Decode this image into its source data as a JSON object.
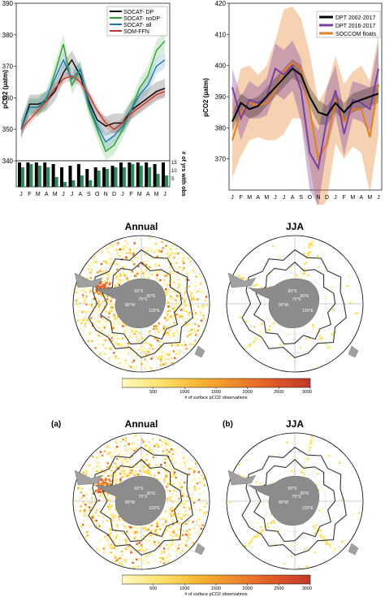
{
  "charts": [
    {
      "id": "left",
      "type": "line",
      "ylabel": "pCO2 (µatm)",
      "ylim": [
        340,
        390
      ],
      "yticks": [
        340,
        350,
        360,
        370,
        380,
        390
      ],
      "x": [
        "J",
        "F",
        "M",
        "A",
        "M",
        "J",
        "J",
        "A",
        "S",
        "O",
        "N",
        "D",
        "J",
        "F",
        "M",
        "A",
        "M",
        "J"
      ],
      "legend": [
        "SOCAT- DP",
        "SOCAT- noDP",
        "SOCAT- all",
        "SOM-FFN"
      ],
      "legend_position": "top-right",
      "colors": {
        "dp": "#000000",
        "nodp": "#2ca02c",
        "all": "#1f77b4",
        "somffn": "#c0392b"
      },
      "series": [
        {
          "name": "SOCAT- DP",
          "values": [
            350,
            358,
            358,
            359,
            362,
            368,
            372,
            367,
            359,
            353,
            351,
            352,
            352,
            356,
            358,
            360,
            362,
            363
          ]
        },
        {
          "name": "SOCAT- noDP",
          "values": [
            350,
            357,
            357,
            359,
            368,
            377,
            364,
            369,
            357,
            350,
            343,
            345,
            350,
            356,
            363,
            367,
            375,
            378
          ]
        },
        {
          "name": "SOCAT- all",
          "values": [
            350,
            357,
            357,
            360,
            366,
            372,
            366,
            369,
            358,
            351,
            346,
            348,
            351,
            356,
            361,
            364,
            370,
            372
          ]
        },
        {
          "name": "SOM-FFN",
          "values": [
            350,
            353,
            356,
            359,
            363,
            366,
            367,
            365,
            361,
            356,
            352,
            350,
            352,
            355,
            357,
            359,
            361,
            362
          ]
        }
      ],
      "secondary_ylabel": "# of yrs with obs",
      "secondary_ticks": [
        5,
        10,
        15
      ],
      "bars_dp": [
        15,
        15,
        15,
        15,
        14,
        12,
        13,
        14,
        11,
        12,
        12,
        13,
        15,
        15,
        15,
        15,
        14,
        15
      ],
      "bars_nodp": [
        12,
        14,
        13,
        12,
        6,
        3,
        4,
        7,
        4,
        10,
        11,
        12,
        12,
        14,
        13,
        12,
        8,
        7
      ]
    },
    {
      "id": "right",
      "type": "line",
      "ylabel": "pCO2 (µatm)",
      "ylim": [
        360,
        420
      ],
      "yticks": [
        370,
        380,
        390,
        400,
        410,
        420
      ],
      "x": [
        "J",
        "F",
        "M",
        "A",
        "M",
        "J",
        "J",
        "A",
        "S",
        "O",
        "N",
        "D",
        "J",
        "F",
        "M",
        "A",
        "M",
        "J"
      ],
      "legend": [
        "DPT 2002-2017",
        "DPT 2016-2017",
        "SOCCOM floats"
      ],
      "legend_position": "top-right",
      "colors": {
        "dpt0217": "#000000",
        "dpt1617": "#7b3f9e",
        "soccom": "#e67e22"
      },
      "series": [
        {
          "name": "DPT 2002-2017",
          "values": [
            382,
            388,
            386,
            387,
            390,
            393,
            396,
            399,
            397,
            390,
            385,
            384,
            388,
            385,
            388,
            389,
            390,
            391
          ]
        },
        {
          "name": "DPT 2016-2017",
          "values": [
            393,
            383,
            389,
            388,
            390,
            399,
            397,
            400,
            392,
            372,
            367,
            383,
            392,
            378,
            389,
            388,
            386,
            399
          ]
        },
        {
          "name": "SOCCOM floats",
          "values": [
            376,
            385,
            388,
            387,
            388,
            392,
            398,
            401,
            399,
            386,
            370,
            375,
            389,
            382,
            386,
            386,
            377,
            394
          ]
        }
      ]
    }
  ],
  "maps": [
    {
      "title": "Annual",
      "panel_label": "",
      "density": "high"
    },
    {
      "title": "JJA",
      "panel_label": "",
      "density": "low"
    },
    {
      "title": "Annual",
      "panel_label": "(a)",
      "density": "high"
    },
    {
      "title": "JJA",
      "panel_label": "(b)",
      "density": "low"
    }
  ],
  "map_grid_labels": {
    "lon": [
      "90°W",
      "90°E",
      "120°E"
    ],
    "lat": [
      "30°S",
      "45°S",
      "60°S",
      "75°S"
    ]
  },
  "colorbar": {
    "ticks": [
      "500",
      "1000",
      "1500",
      "2000",
      "2500",
      "3000"
    ],
    "label": "# of surface pCO2 observations",
    "colors": [
      "#fff9c4",
      "#ffe36e",
      "#f7b733",
      "#ee8a2c",
      "#e05a28",
      "#c0392b"
    ]
  }
}
